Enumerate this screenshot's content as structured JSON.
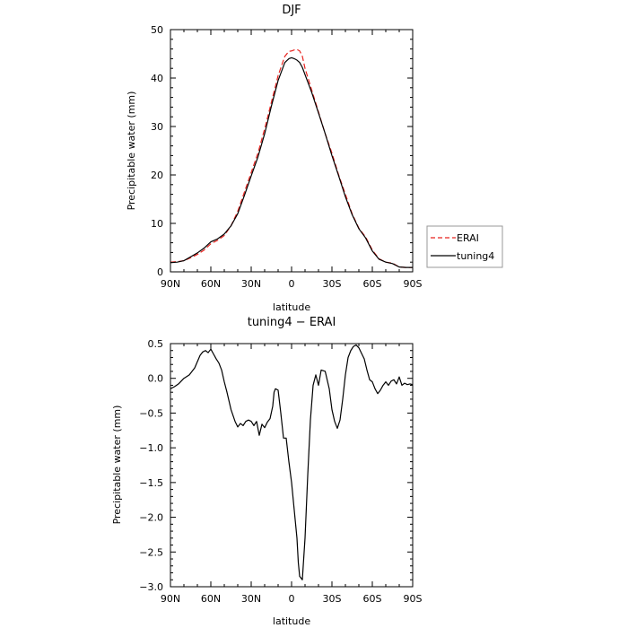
{
  "chart_data": [
    {
      "type": "line",
      "title": "DJF",
      "xlabel": "latitude",
      "ylabel": "Precipitable water (mm)",
      "xlim": [
        90,
        -90
      ],
      "ylim": [
        0,
        50
      ],
      "x_tick_values": [
        90,
        60,
        30,
        0,
        -30,
        -60,
        -90
      ],
      "x_tick_labels": [
        "90N",
        "60N",
        "30N",
        "0",
        "30S",
        "60S",
        "90S"
      ],
      "y_tick_values": [
        0,
        10,
        20,
        30,
        40,
        50
      ],
      "y_tick_labels": [
        "0",
        "10",
        "20",
        "30",
        "40",
        "50"
      ],
      "grid": false,
      "legend_position": "right",
      "series": [
        {
          "name": "ERAI",
          "color": "#e8231f",
          "dash": "dashed",
          "x": [
            90,
            85,
            80,
            75,
            70,
            65,
            60,
            55,
            50,
            45,
            40,
            35,
            30,
            25,
            20,
            15,
            10,
            5,
            2,
            0,
            -2,
            -4,
            -6,
            -8,
            -10,
            -15,
            -20,
            -25,
            -30,
            -35,
            -40,
            -45,
            -50,
            -55,
            -60,
            -65,
            -70,
            -75,
            -80,
            -85,
            -88,
            -90
          ],
          "values": [
            2.0,
            2.1,
            2.3,
            2.9,
            3.6,
            4.5,
            5.8,
            6.5,
            7.5,
            9.5,
            12.5,
            16.5,
            20.5,
            24.5,
            29.5,
            35.0,
            40.5,
            44.5,
            45.5,
            45.6,
            45.8,
            45.9,
            45.6,
            44.5,
            42.0,
            37.5,
            33.0,
            28.5,
            24.5,
            20.0,
            16.0,
            12.0,
            9.0,
            7.2,
            4.5,
            2.7,
            2.0,
            1.8,
            1.0,
            0.9,
            0.9,
            0.9
          ]
        },
        {
          "name": "tuning4",
          "color": "#000000",
          "dash": "solid",
          "x": [
            90,
            85,
            80,
            75,
            70,
            65,
            60,
            55,
            50,
            45,
            40,
            35,
            30,
            25,
            20,
            15,
            10,
            5,
            2,
            0,
            -2,
            -4,
            -6,
            -8,
            -10,
            -15,
            -20,
            -25,
            -30,
            -35,
            -40,
            -45,
            -50,
            -55,
            -60,
            -65,
            -70,
            -75,
            -80,
            -85,
            -88,
            -90
          ],
          "values": [
            1.9,
            2.0,
            2.3,
            3.1,
            3.9,
            4.9,
            6.2,
            6.8,
            7.8,
            9.5,
            12.0,
            15.8,
            19.8,
            23.7,
            28.5,
            34.2,
            39.5,
            43.2,
            44.0,
            44.2,
            44.0,
            43.7,
            43.2,
            42.2,
            40.7,
            37.0,
            32.8,
            28.5,
            24.0,
            19.8,
            15.5,
            11.8,
            8.9,
            7.0,
            4.3,
            2.6,
            2.0,
            1.7,
            1.0,
            0.9,
            0.9,
            0.9
          ]
        }
      ]
    },
    {
      "type": "line",
      "title": "tuning4 − ERAI",
      "xlabel": "latitude",
      "ylabel": "Precipitable water (mm)",
      "xlim": [
        90,
        -90
      ],
      "ylim": [
        -3.0,
        0.5
      ],
      "x_tick_values": [
        90,
        60,
        30,
        0,
        -30,
        -60,
        -90
      ],
      "x_tick_labels": [
        "90N",
        "60N",
        "30N",
        "0",
        "30S",
        "60S",
        "90S"
      ],
      "y_tick_values": [
        0.5,
        0.0,
        -0.5,
        -1.0,
        -1.5,
        -2.0,
        -2.5,
        -3.0
      ],
      "y_tick_labels": [
        "0.5",
        "0.0",
        "−0.5",
        "−1.0",
        "−1.5",
        "−2.0",
        "−2.5",
        "−3.0"
      ],
      "grid": false,
      "series": [
        {
          "color": "#000000",
          "dash": "solid",
          "x": [
            90,
            87,
            84,
            80,
            76,
            72,
            68,
            66,
            64,
            62,
            60,
            58,
            56,
            54,
            52,
            50,
            48,
            45,
            42,
            40,
            38,
            36,
            34,
            32,
            30,
            28,
            26,
            24,
            22,
            20,
            18,
            16,
            14,
            13,
            12,
            10,
            8,
            6,
            4,
            2,
            0,
            -2,
            -4,
            -5,
            -6,
            -8,
            -10,
            -12,
            -14,
            -16,
            -18,
            -20,
            -22,
            -25,
            -28,
            -30,
            -32,
            -34,
            -36,
            -38,
            -40,
            -42,
            -44,
            -46,
            -48,
            -50,
            -52,
            -54,
            -56,
            -58,
            -60,
            -62,
            -64,
            -66,
            -68,
            -70,
            -72,
            -74,
            -76,
            -78,
            -80,
            -82,
            -84,
            -86,
            -88,
            -90
          ],
          "values": [
            -0.15,
            -0.12,
            -0.08,
            0.0,
            0.05,
            0.15,
            0.33,
            0.38,
            0.4,
            0.37,
            0.42,
            0.35,
            0.28,
            0.22,
            0.12,
            -0.05,
            -0.2,
            -0.45,
            -0.62,
            -0.7,
            -0.65,
            -0.68,
            -0.62,
            -0.6,
            -0.62,
            -0.68,
            -0.62,
            -0.82,
            -0.66,
            -0.71,
            -0.63,
            -0.58,
            -0.4,
            -0.2,
            -0.15,
            -0.17,
            -0.5,
            -0.86,
            -0.86,
            -1.2,
            -1.5,
            -1.9,
            -2.3,
            -2.65,
            -2.85,
            -2.9,
            -2.3,
            -1.4,
            -0.6,
            -0.1,
            0.05,
            -0.1,
            0.12,
            0.1,
            -0.15,
            -0.45,
            -0.62,
            -0.72,
            -0.6,
            -0.3,
            0.05,
            0.3,
            0.4,
            0.46,
            0.48,
            0.44,
            0.36,
            0.28,
            0.12,
            -0.02,
            -0.05,
            -0.15,
            -0.22,
            -0.17,
            -0.1,
            -0.05,
            -0.1,
            -0.04,
            -0.02,
            -0.08,
            0.02,
            -0.1,
            -0.07,
            -0.09,
            -0.08,
            -0.09
          ]
        }
      ]
    }
  ]
}
